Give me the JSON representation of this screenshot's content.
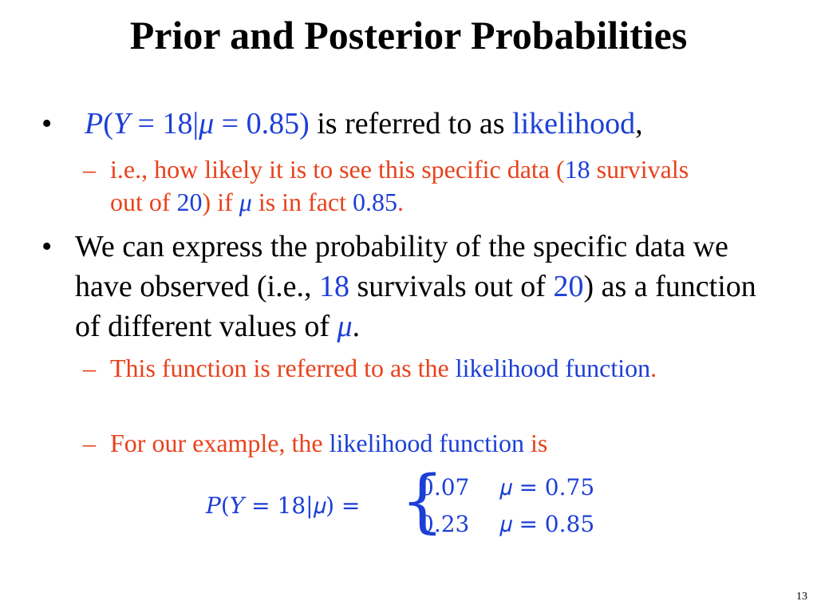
{
  "title": "Prior and Posterior Probabilities",
  "bullet1": {
    "formula": {
      "p": "P",
      "open": "(",
      "y": "Y",
      "eq": " = 18|",
      "mu": "μ",
      "val": " = 0.85)"
    },
    "text1": " is referred to as ",
    "link": "likelihood",
    "comma": ",",
    "sub": {
      "t1": "i.e., how likely it is to see this specific data (",
      "n1": "18",
      "t2": " survivals out of ",
      "n2": "20",
      "t3": ") if ",
      "mu": "μ",
      "t4": " is in fact ",
      "n3": "0.85",
      "t5": "."
    }
  },
  "bullet2": {
    "t1": "We can express the probability of the specific data we have observed (i.e., ",
    "n1": "18",
    "t2": " survivals out of ",
    "n2": "20",
    "t3": ") as a function of different values of ",
    "mu": "μ",
    "t4": ".",
    "sub1": {
      "t1": "This function is referred to as the ",
      "link": "likelihood function",
      "t2": "."
    },
    "sub2": {
      "t1": "For our example, the ",
      "link": "likelihood function",
      "t2": " is"
    }
  },
  "equation": {
    "lhs": "𝑃(𝑌 = 18|𝜇) =",
    "brace": "{",
    "row1_val": "0.07",
    "row1_cond": "𝜇 = 0.75",
    "row2_val": "0.23",
    "row2_cond": "𝜇 = 0.85"
  },
  "bullet_glyph": "•",
  "dash_glyph": "–",
  "page_number": "13",
  "colors": {
    "accent_blue": "#1c3fd6",
    "accent_red": "#e8421c",
    "text": "#000000"
  }
}
